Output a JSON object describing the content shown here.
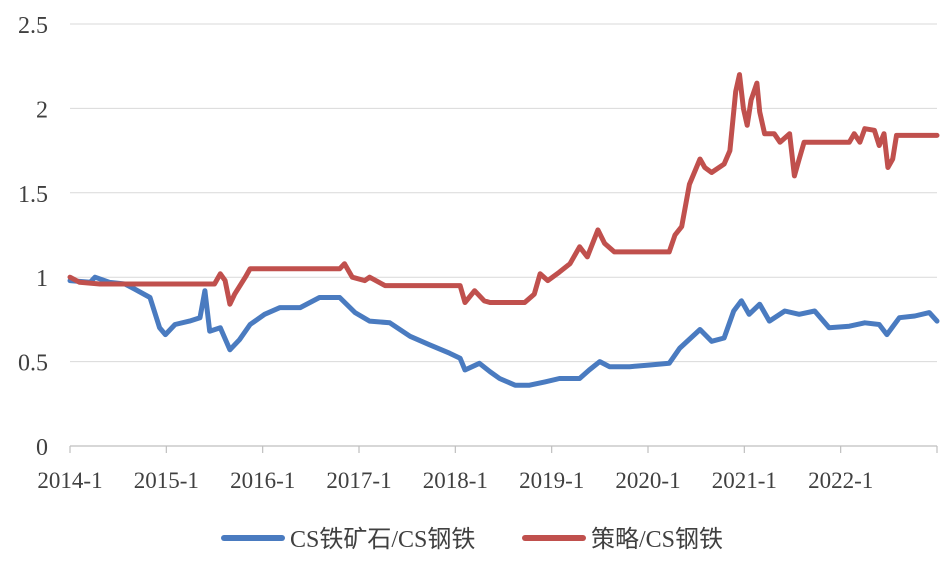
{
  "chart_data": {
    "type": "line",
    "title": "",
    "xlabel": "",
    "ylabel": "",
    "ylim": [
      0,
      2.5
    ],
    "xlim": [
      2014.0,
      2023.0
    ],
    "yticks": [
      0,
      0.5,
      1,
      1.5,
      2,
      2.5
    ],
    "ytick_labels": [
      "0",
      "0.5",
      "1",
      "1.5",
      "2",
      "2.5"
    ],
    "xticks": [
      2014,
      2015,
      2016,
      2017,
      2018,
      2019,
      2020,
      2021,
      2022
    ],
    "xtick_labels": [
      "2014-1",
      "2015-1",
      "2016-1",
      "2017-1",
      "2018-1",
      "2019-1",
      "2020-1",
      "2021-1",
      "2022-1"
    ],
    "grid": "horizontal",
    "legend_position": "bottom",
    "series": [
      {
        "name": "CS铁矿石/CS钢铁",
        "color": "#4a7bc0",
        "x": [
          2014.0,
          2014.21,
          2014.26,
          2014.41,
          2014.57,
          2014.67,
          2014.83,
          2014.93,
          2014.99,
          2015.09,
          2015.24,
          2015.35,
          2015.4,
          2015.45,
          2015.56,
          2015.66,
          2015.76,
          2015.87,
          2016.02,
          2016.18,
          2016.39,
          2016.59,
          2016.8,
          2016.96,
          2017.11,
          2017.32,
          2017.53,
          2017.73,
          2017.94,
          2018.05,
          2018.1,
          2018.25,
          2018.36,
          2018.46,
          2018.62,
          2018.77,
          2018.93,
          2019.08,
          2019.29,
          2019.39,
          2019.5,
          2019.6,
          2019.81,
          2020.02,
          2020.22,
          2020.33,
          2020.54,
          2020.66,
          2020.79,
          2020.89,
          2020.97,
          2021.05,
          2021.16,
          2021.26,
          2021.42,
          2021.57,
          2021.73,
          2021.88,
          2022.09,
          2022.25,
          2022.4,
          2022.48,
          2022.61,
          2022.77,
          2022.92,
          2023.0
        ],
        "y": [
          0.98,
          0.97,
          1.0,
          0.97,
          0.96,
          0.93,
          0.88,
          0.7,
          0.66,
          0.72,
          0.74,
          0.76,
          0.92,
          0.68,
          0.7,
          0.57,
          0.63,
          0.72,
          0.78,
          0.82,
          0.82,
          0.88,
          0.88,
          0.79,
          0.74,
          0.73,
          0.65,
          0.6,
          0.55,
          0.52,
          0.45,
          0.49,
          0.44,
          0.4,
          0.36,
          0.36,
          0.38,
          0.4,
          0.4,
          0.45,
          0.5,
          0.47,
          0.47,
          0.48,
          0.49,
          0.58,
          0.69,
          0.62,
          0.64,
          0.8,
          0.86,
          0.78,
          0.84,
          0.74,
          0.8,
          0.78,
          0.8,
          0.7,
          0.71,
          0.73,
          0.72,
          0.66,
          0.76,
          0.77,
          0.79,
          0.74
        ]
      },
      {
        "name": "策略/CS钢铁",
        "color": "#c0504d",
        "x": [
          2014.0,
          2014.1,
          2014.31,
          2015.5,
          2015.56,
          2015.61,
          2015.66,
          2015.71,
          2015.82,
          2015.87,
          2016.8,
          2016.85,
          2016.93,
          2017.06,
          2017.11,
          2017.27,
          2018.05,
          2018.1,
          2018.2,
          2018.3,
          2018.36,
          2018.72,
          2018.82,
          2018.88,
          2018.96,
          2019.08,
          2019.19,
          2019.29,
          2019.37,
          2019.48,
          2019.55,
          2019.65,
          2020.22,
          2020.28,
          2020.35,
          2020.43,
          2020.54,
          2020.59,
          2020.66,
          2020.79,
          2020.85,
          2020.91,
          2020.95,
          2020.99,
          2021.03,
          2021.07,
          2021.13,
          2021.16,
          2021.21,
          2021.31,
          2021.37,
          2021.47,
          2021.52,
          2021.57,
          2021.62,
          2022.09,
          2022.14,
          2022.2,
          2022.25,
          2022.35,
          2022.4,
          2022.45,
          2022.49,
          2022.54,
          2022.58,
          2023.0
        ],
        "y": [
          1.0,
          0.97,
          0.96,
          0.96,
          1.02,
          0.98,
          0.84,
          0.9,
          1.0,
          1.05,
          1.05,
          1.08,
          1.0,
          0.98,
          1.0,
          0.95,
          0.95,
          0.85,
          0.92,
          0.86,
          0.85,
          0.85,
          0.9,
          1.02,
          0.98,
          1.03,
          1.08,
          1.18,
          1.12,
          1.28,
          1.2,
          1.15,
          1.15,
          1.25,
          1.3,
          1.55,
          1.7,
          1.65,
          1.62,
          1.67,
          1.75,
          2.1,
          2.2,
          2.0,
          1.9,
          2.05,
          2.15,
          1.98,
          1.85,
          1.85,
          1.8,
          1.85,
          1.6,
          1.7,
          1.8,
          1.8,
          1.85,
          1.8,
          1.88,
          1.87,
          1.78,
          1.85,
          1.65,
          1.7,
          1.84,
          1.84
        ]
      }
    ]
  }
}
